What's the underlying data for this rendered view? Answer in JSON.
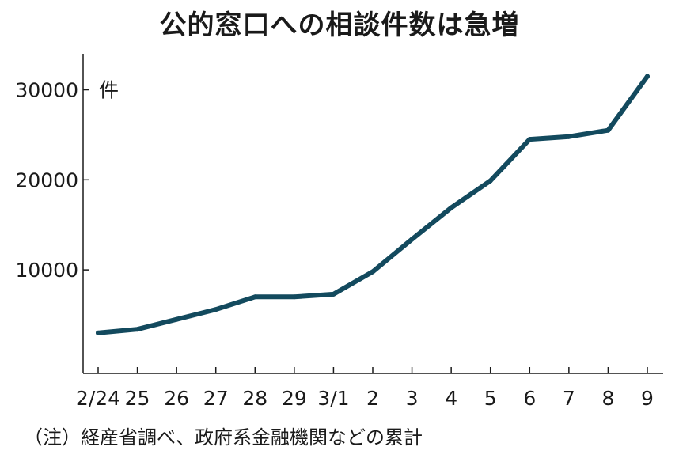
{
  "chart_data": {
    "type": "line",
    "title": "公的窓口への相談件数は急増",
    "unit_label": "件",
    "categories": [
      "2/24",
      "25",
      "26",
      "27",
      "28",
      "29",
      "3/1",
      "2",
      "3",
      "4",
      "5",
      "6",
      "7",
      "8",
      "9"
    ],
    "series": [
      {
        "values": [
          3000,
          3400,
          4500,
          5600,
          7000,
          7000,
          7300,
          9800,
          13400,
          16900,
          19900,
          24500,
          24800,
          25500,
          31500
        ],
        "color": "#134a5e"
      }
    ],
    "yticks": [
      10000,
      20000,
      30000
    ],
    "ylim": [
      -1500,
      34000
    ],
    "grid": false,
    "note": "（注）経産省調べ、政府系金融機関などの累計"
  }
}
